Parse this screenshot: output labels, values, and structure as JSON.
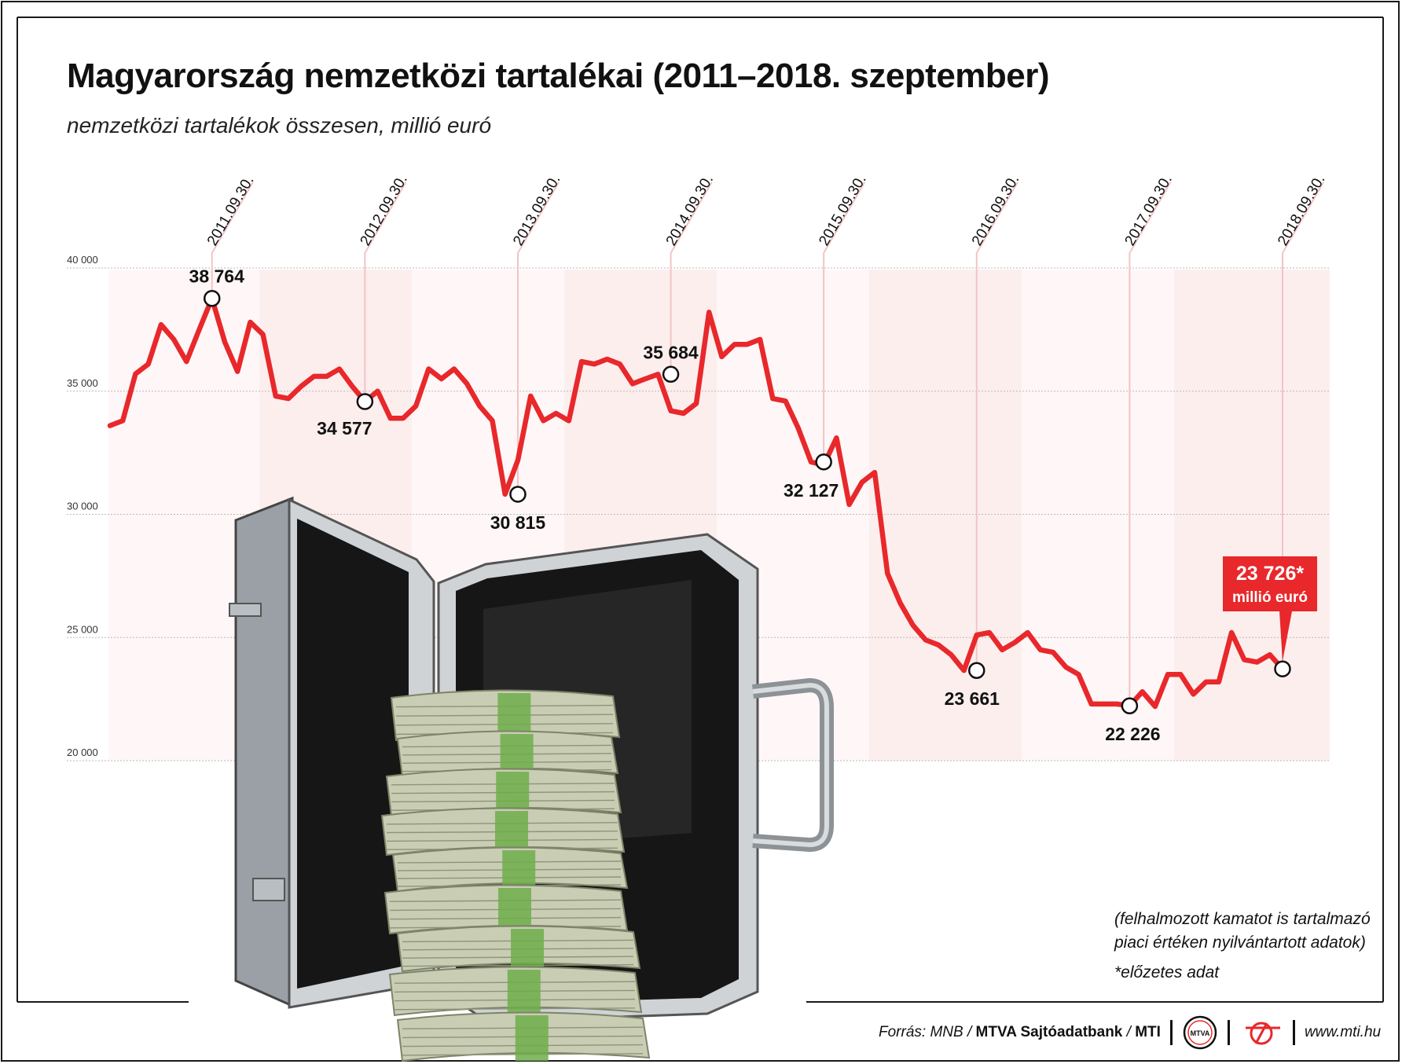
{
  "title": "Magyarország nemzetközi tartalékai (2011–2018. szeptember)",
  "subtitle": "nemzetközi tartalékok összesen, millió euró",
  "notes": {
    "line1": "(felhalmozott kamatot is tartalmazó",
    "line2": "piaci értéken nyilvántartott adatok)",
    "line3": "*előzetes adat"
  },
  "footer": {
    "source_label": "Forrás: MNB /",
    "agency": "MTVA Sajtóadatbank",
    "sep": "/",
    "mti": "MTI",
    "logo1_text": "MTVA",
    "url": "www.mti.hu"
  },
  "colors": {
    "line": "#e8282b",
    "band": "#fdeeee",
    "grid": "#b8b8b8",
    "connector": "#f2c4c4",
    "callout_bg": "#e8282b"
  },
  "icons": [
    "briefcase-illustration",
    "money-stack-illustration",
    "mtva-logo-icon",
    "mti-logo-icon"
  ],
  "chart_data": {
    "type": "line",
    "title": "Magyarország nemzetközi tartalékai (2011–2018. szeptember)",
    "ylabel": "nemzetközi tartalékok összesen, millió euró",
    "ylim": [
      20000,
      40000
    ],
    "y_ticks": [
      20000,
      25000,
      30000,
      35000,
      40000
    ],
    "y_tick_labels": [
      "20 000",
      "25 000",
      "30 000",
      "35 000",
      "40 000"
    ],
    "grid": true,
    "series": [
      {
        "values": [
          33600,
          33800,
          35700,
          36100,
          37700,
          37100,
          36200,
          37500,
          38764,
          37000,
          35800,
          37800,
          37300,
          34800,
          34700,
          35200,
          35600,
          35600,
          35900,
          35200,
          34577,
          35000,
          33900,
          33900,
          34400,
          35900,
          35500,
          35900,
          35300,
          34400,
          33800,
          30815,
          32200,
          34800,
          33800,
          34100,
          33800,
          36200,
          36100,
          36300,
          36100,
          35300,
          35500,
          35684,
          34200,
          34100,
          34500,
          38200,
          36400,
          36900,
          36900,
          37100,
          34700,
          34600,
          33500,
          32127,
          32000,
          33100,
          30400,
          31300,
          31700,
          27600,
          26400,
          25500,
          24900,
          24700,
          24300,
          23661,
          25100,
          25200,
          24500,
          24800,
          25200,
          24500,
          24400,
          23800,
          23500,
          22300,
          22300,
          22300,
          22226,
          22800,
          22200,
          23500,
          23500,
          22700,
          23200,
          23200,
          25200,
          24100,
          24000,
          24300,
          23726
        ]
      }
    ],
    "highlighted_points": [
      {
        "date": "2011.09.30.",
        "value": 38764,
        "label": "38 764"
      },
      {
        "date": "2012.09.30.",
        "value": 34577,
        "label": "34 577"
      },
      {
        "date": "2013.09.30.",
        "value": 30815,
        "label": "30 815"
      },
      {
        "date": "2014.09.30.",
        "value": 35684,
        "label": "35 684"
      },
      {
        "date": "2015.09.30.",
        "value": 32127,
        "label": "32 127"
      },
      {
        "date": "2016.09.30.",
        "value": 23661,
        "label": "23 661"
      },
      {
        "date": "2017.09.30.",
        "value": 22226,
        "label": "22 226"
      },
      {
        "date": "2018.09.30.",
        "value": 23726,
        "label": "23 726*"
      }
    ],
    "callout": {
      "value_label": "23 726*",
      "unit_label": "millió euró"
    }
  }
}
